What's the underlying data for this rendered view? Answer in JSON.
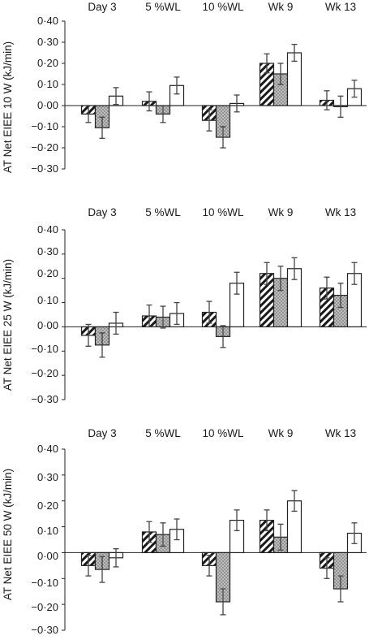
{
  "chart_data": [
    {
      "type": "bar",
      "ylabel": "AT Net EIEE 10 W (kJ/min)",
      "categories": [
        "Day 3",
        "5 %WL",
        "10 %WL",
        "Wk 9",
        "Wk 13"
      ],
      "ylim": [
        -0.3,
        0.4
      ],
      "yticks": [
        "0·40",
        "0·30",
        "0·20",
        "0·10",
        "0·00",
        "−0·10",
        "−0·20",
        "−0·30"
      ],
      "series": [
        {
          "pattern": "diagonal-hatch",
          "values": [
            -0.04,
            0.02,
            -0.07,
            0.2,
            0.025
          ],
          "errors": [
            0.04,
            0.045,
            0.05,
            0.045,
            0.045
          ]
        },
        {
          "pattern": "dotted-grey",
          "values": [
            -0.105,
            -0.04,
            -0.15,
            0.15,
            -0.005
          ],
          "errors": [
            0.05,
            0.04,
            0.05,
            0.05,
            0.05
          ]
        },
        {
          "pattern": "open",
          "values": [
            0.045,
            0.095,
            0.01,
            0.25,
            0.08
          ],
          "errors": [
            0.04,
            0.04,
            0.04,
            0.04,
            0.04
          ]
        }
      ]
    },
    {
      "type": "bar",
      "ylabel": "AT Net EIEE 25 W (kJ/min)",
      "categories": [
        "Day 3",
        "5 %WL",
        "10 %WL",
        "Wk 9",
        "Wk 13"
      ],
      "ylim": [
        -0.3,
        0.4
      ],
      "yticks": [
        "0·40",
        "0·30",
        "0·20",
        "0·10",
        "0·00",
        "−0·10",
        "−0·20",
        "−0·30"
      ],
      "series": [
        {
          "pattern": "diagonal-hatch",
          "values": [
            -0.035,
            0.045,
            0.06,
            0.22,
            0.16
          ],
          "errors": [
            0.045,
            0.045,
            0.045,
            0.045,
            0.045
          ]
        },
        {
          "pattern": "dotted-grey",
          "values": [
            -0.075,
            0.04,
            -0.04,
            0.2,
            0.13
          ],
          "errors": [
            0.05,
            0.045,
            0.045,
            0.05,
            0.05
          ]
        },
        {
          "pattern": "open",
          "values": [
            0.015,
            0.055,
            0.18,
            0.24,
            0.22
          ],
          "errors": [
            0.045,
            0.045,
            0.045,
            0.045,
            0.045
          ]
        }
      ]
    },
    {
      "type": "bar",
      "ylabel": "AT Net EIEE 50 W (kJ/min)",
      "categories": [
        "Day 3",
        "5 %WL",
        "10 %WL",
        "Wk 9",
        "Wk 13"
      ],
      "ylim": [
        -0.3,
        0.4
      ],
      "yticks": [
        "0·40",
        "0·30",
        "0·20",
        "0·10",
        "0·00",
        "−0·10",
        "−0·20",
        "−0·30"
      ],
      "series": [
        {
          "pattern": "diagonal-hatch",
          "values": [
            -0.05,
            0.08,
            -0.05,
            0.125,
            -0.06
          ],
          "errors": [
            0.04,
            0.04,
            0.04,
            0.04,
            0.04
          ]
        },
        {
          "pattern": "dotted-grey",
          "values": [
            -0.065,
            0.07,
            -0.19,
            0.06,
            -0.14
          ],
          "errors": [
            0.05,
            0.045,
            0.05,
            0.05,
            0.05
          ]
        },
        {
          "pattern": "open",
          "values": [
            -0.02,
            0.09,
            0.125,
            0.2,
            0.075
          ],
          "errors": [
            0.035,
            0.04,
            0.04,
            0.04,
            0.04
          ]
        }
      ]
    }
  ]
}
